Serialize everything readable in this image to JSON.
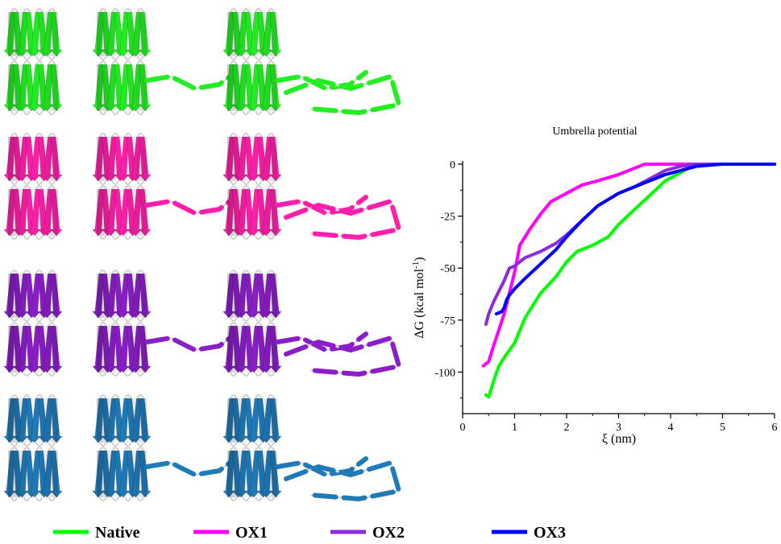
{
  "protein_colors": [
    "#22ee22",
    "#ff1faa",
    "#8a1ec8",
    "#1f7ab8"
  ],
  "chart_data": {
    "type": "line",
    "title": "Umbrella potential",
    "xlabel": "ξ (nm)",
    "ylabel_main": "ΔG (kcal mol",
    "ylabel_sup": "-1",
    "ylabel_end": ")",
    "xlim": [
      0,
      6
    ],
    "ylim": [
      -120,
      0
    ],
    "xticks": [
      0,
      1,
      2,
      3,
      4,
      5,
      6
    ],
    "yticks": [
      0,
      -25,
      -50,
      -75,
      -100
    ],
    "grid": false,
    "legend_position": "bottom",
    "series": [
      {
        "name": "Native",
        "color": "#00ff00",
        "x": [
          0.45,
          0.5,
          0.6,
          0.7,
          0.8,
          1.0,
          1.2,
          1.5,
          1.8,
          2.0,
          2.2,
          2.5,
          2.8,
          3.0,
          3.3,
          3.6,
          3.9,
          4.2,
          4.4,
          4.5,
          4.8,
          5.0,
          5.5,
          6.0
        ],
        "y": [
          -111,
          -112,
          -104,
          -97,
          -93,
          -86,
          -74,
          -62,
          -54,
          -47,
          -42,
          -39,
          -35,
          -29,
          -22,
          -15,
          -8,
          -4,
          -1,
          0,
          0,
          0,
          0,
          0
        ]
      },
      {
        "name": "OX1",
        "color": "#ff00ff",
        "x": [
          0.4,
          0.5,
          0.6,
          0.8,
          1.0,
          1.1,
          1.3,
          1.5,
          1.7,
          2.0,
          2.3,
          2.6,
          3.0,
          3.3,
          3.5,
          4.0,
          4.5,
          5.0,
          6.0
        ],
        "y": [
          -97,
          -95,
          -87,
          -72,
          -52,
          -39,
          -31,
          -24,
          -18,
          -14,
          -10,
          -8,
          -5,
          -2,
          0,
          0,
          0,
          0,
          0
        ]
      },
      {
        "name": "OX2",
        "color": "#8a2be2",
        "x": [
          0.45,
          0.5,
          0.6,
          0.7,
          0.8,
          0.9,
          1.0,
          1.2,
          1.5,
          1.8,
          2.0,
          2.3,
          2.6,
          3.0,
          3.3,
          3.6,
          3.9,
          4.2,
          4.5,
          5.0,
          6.0
        ],
        "y": [
          -77,
          -72,
          -66,
          -61,
          -56,
          -50,
          -49,
          -45,
          -42,
          -38,
          -34,
          -27,
          -20,
          -14,
          -11,
          -7,
          -3,
          -1,
          0,
          0,
          0
        ]
      },
      {
        "name": "OX3",
        "color": "#0000ff",
        "x": [
          0.65,
          0.75,
          0.8,
          0.85,
          0.9,
          1.0,
          1.2,
          1.5,
          1.8,
          2.0,
          2.3,
          2.6,
          3.0,
          3.3,
          3.6,
          3.9,
          4.2,
          4.5,
          5.0,
          5.5,
          6.0
        ],
        "y": [
          -72,
          -71,
          -69,
          -65,
          -63,
          -60,
          -55,
          -48,
          -41,
          -35,
          -27,
          -20,
          -14,
          -11,
          -8,
          -5,
          -3,
          -1,
          0,
          0,
          0
        ]
      }
    ]
  }
}
